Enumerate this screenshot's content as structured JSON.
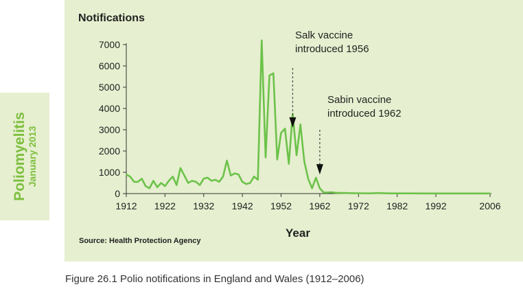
{
  "side_tab": {
    "title": "Poliomyelitis",
    "date": "January 2013"
  },
  "caption": "Figure 26.1  Polio notifications in England and Wales (1912–2006)",
  "colors": {
    "background_panel": "#e6efcf",
    "series_line": "#6cc24a",
    "side_text": "#7dbf3f"
  },
  "chart_data": {
    "type": "line",
    "title": "Notifications",
    "xlabel": "Year",
    "ylabel": "",
    "source": "Source: Health Protection Agency",
    "xlim": [
      1912,
      2006
    ],
    "ylim": [
      0,
      7000
    ],
    "x_ticks": [
      1912,
      1922,
      1932,
      1942,
      1952,
      1962,
      1972,
      1982,
      1992,
      2006
    ],
    "y_ticks": [
      0,
      1000,
      2000,
      3000,
      4000,
      5000,
      6000,
      7000
    ],
    "grid": false,
    "series": [
      {
        "name": "",
        "color": "#6cc24a",
        "x": [
          1912,
          1913,
          1914,
          1915,
          1916,
          1917,
          1918,
          1919,
          1920,
          1921,
          1922,
          1923,
          1924,
          1925,
          1926,
          1927,
          1928,
          1929,
          1930,
          1931,
          1932,
          1933,
          1934,
          1935,
          1936,
          1937,
          1938,
          1939,
          1940,
          1941,
          1942,
          1943,
          1944,
          1945,
          1946,
          1947,
          1948,
          1949,
          1950,
          1951,
          1952,
          1953,
          1954,
          1955,
          1956,
          1957,
          1958,
          1959,
          1960,
          1961,
          1962,
          1963,
          1964,
          1965,
          1966,
          1967,
          1968,
          1970,
          1972,
          1975,
          1977,
          1980,
          1985,
          1990,
          1995,
          2000,
          2006
        ],
        "values": [
          900,
          800,
          550,
          550,
          700,
          350,
          250,
          600,
          300,
          500,
          350,
          600,
          800,
          400,
          1200,
          850,
          500,
          600,
          550,
          400,
          700,
          750,
          600,
          650,
          550,
          800,
          1550,
          850,
          950,
          900,
          550,
          450,
          500,
          800,
          650,
          7200,
          1700,
          5550,
          5650,
          1600,
          2850,
          3050,
          1400,
          3750,
          1800,
          3250,
          1500,
          700,
          250,
          750,
          250,
          50,
          50,
          60,
          40,
          30,
          30,
          20,
          15,
          10,
          25,
          10,
          10,
          5,
          5,
          5,
          5
        ]
      }
    ],
    "annotations": [
      {
        "text_line1": "Salk vaccine",
        "text_line2": "introduced 1956",
        "year": 1955,
        "from_value": 5900,
        "to_value": 3100
      },
      {
        "text_line1": "Sabin vaccine",
        "text_line2": "introduced 1962",
        "year": 1962,
        "from_value": 3000,
        "to_value": 900
      }
    ]
  }
}
